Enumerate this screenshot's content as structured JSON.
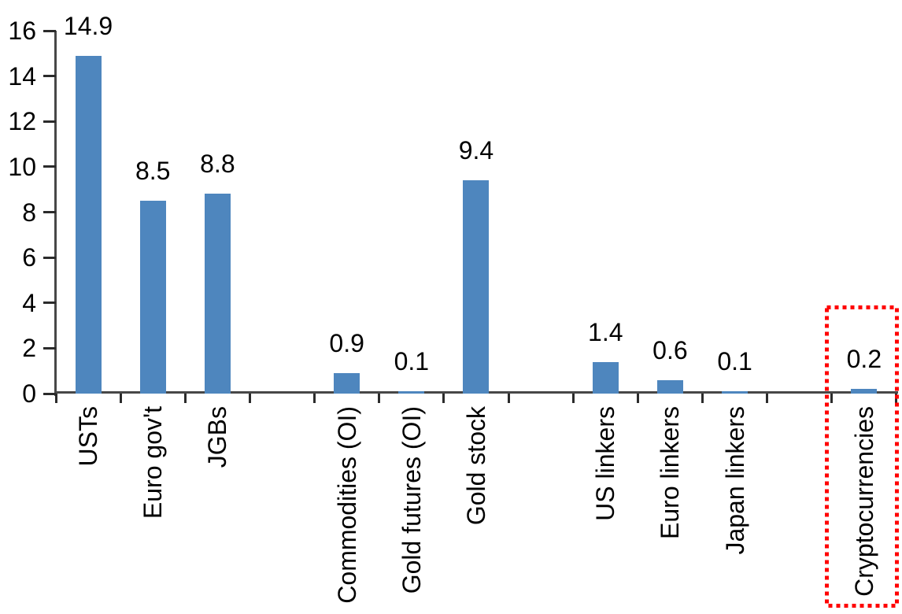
{
  "chart_data": {
    "type": "bar",
    "title": "",
    "xlabel": "",
    "ylabel": "",
    "categories": [
      "USTs",
      "Euro gov't",
      "JGBs",
      "",
      "Commodities (OI)",
      "Gold futures (OI)",
      "Gold stock",
      "",
      "US linkers",
      "Euro linkers",
      "Japan linkers",
      "",
      "Cryptocurrencies"
    ],
    "values": [
      14.9,
      8.5,
      8.8,
      null,
      0.9,
      0.1,
      9.4,
      null,
      1.4,
      0.6,
      0.1,
      null,
      0.2
    ],
    "value_labels": [
      "14.9",
      "8.5",
      "8.8",
      "",
      "0.9",
      "0.1",
      "9.4",
      "",
      "1.4",
      "0.6",
      "0.1",
      "",
      "0.2"
    ],
    "ylim": [
      0,
      16
    ],
    "y_ticks": [
      "0",
      "2",
      "4",
      "6",
      "8",
      "10",
      "12",
      "14",
      "16"
    ],
    "grid": false,
    "legend_position": "none",
    "bar_color": "#4E86BE",
    "axis_color": "#474747",
    "tick_color": "#2B2B2B",
    "text_color": "#000000",
    "highlight": {
      "category": "Cryptocurrencies",
      "style": "red-dotted-box",
      "color": "#FF0000"
    }
  }
}
